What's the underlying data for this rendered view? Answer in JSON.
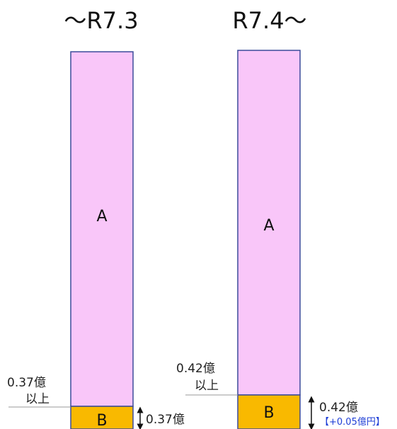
{
  "colors": {
    "segment_a_fill": "#f9c6f9",
    "segment_b_fill": "#f9b900",
    "bar_border": "#3b4b9a",
    "threshold_line": "#9a9a9a",
    "arrow": "#111111",
    "note_blue": "#1f3fd6"
  },
  "columns": [
    {
      "title": "～R7.3",
      "segment_a_label": "A",
      "segment_b_label": "B",
      "threshold_label_line1": "0.37億",
      "threshold_label_line2": "以上",
      "b_height_label": "0.37億",
      "b_height_value_oku": 0.37
    },
    {
      "title": "R7.4～",
      "segment_a_label": "A",
      "segment_b_label": "B",
      "threshold_label_line1": "0.42億",
      "threshold_label_line2": "以上",
      "b_height_label": "0.42億",
      "b_height_value_oku": 0.42,
      "change_note": "【+0.05億円】"
    }
  ]
}
